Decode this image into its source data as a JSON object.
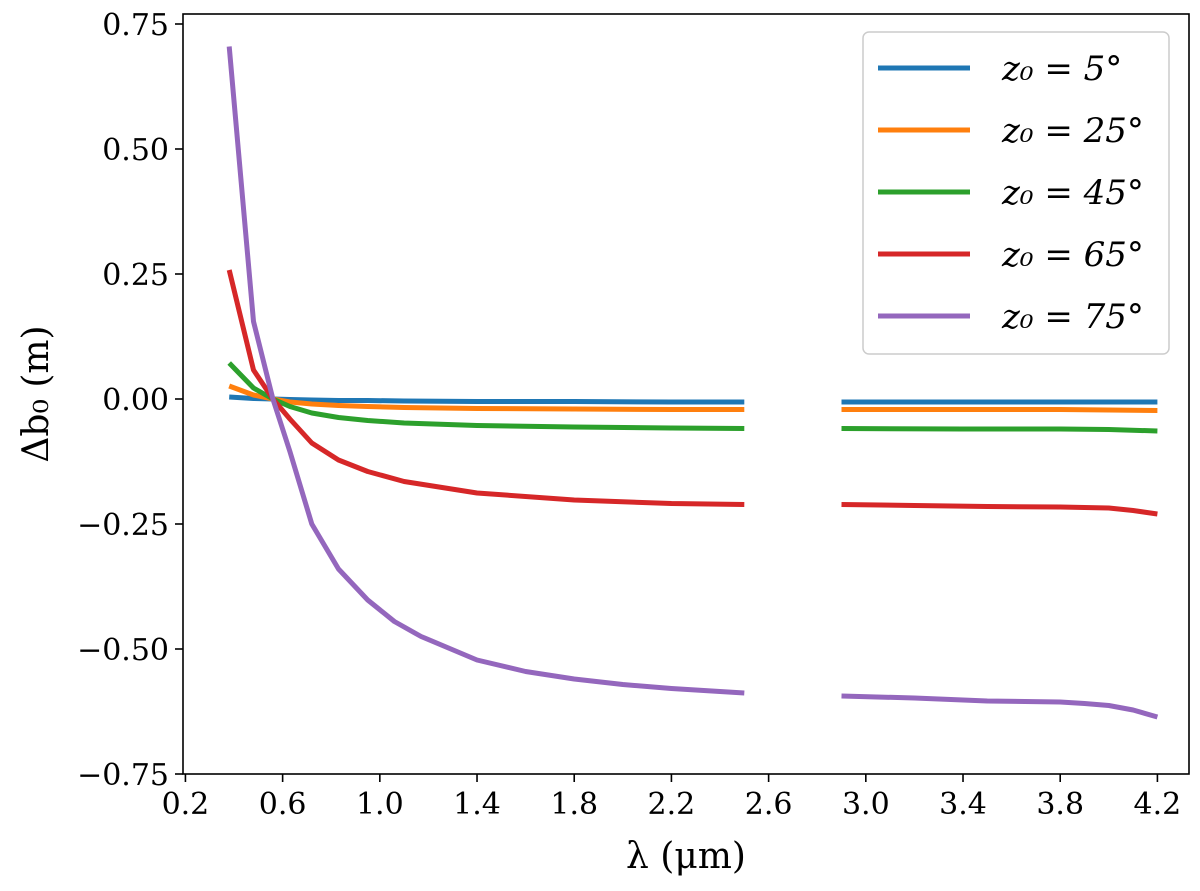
{
  "chart_data": {
    "type": "line",
    "title": "",
    "xlabel": "λ (μm)",
    "ylabel": "Δb₀ (m)",
    "xlim": [
      0.19,
      4.33
    ],
    "ylim": [
      -0.75,
      0.77
    ],
    "grid": false,
    "legend_position": "top-right",
    "xticks": [
      0.2,
      0.6,
      1.0,
      1.4,
      1.8,
      2.2,
      2.6,
      3.0,
      3.4,
      3.8,
      4.2
    ],
    "xtick_labels": [
      "0.2",
      "0.6",
      "1.0",
      "1.4",
      "1.8",
      "2.2",
      "2.6",
      "3.0",
      "3.4",
      "3.8",
      "4.2"
    ],
    "yticks": [
      -0.75,
      -0.5,
      -0.25,
      0.0,
      0.25,
      0.5,
      0.75
    ],
    "ytick_labels": [
      "−0.75",
      "−0.50",
      "−0.25",
      "0.00",
      "0.25",
      "0.50",
      "0.75"
    ],
    "series": [
      {
        "name": "z₀ = 5°",
        "color": "#1f77b4",
        "segments": [
          {
            "x": [
              0.38,
              0.48,
              0.56,
              0.63,
              0.72,
              0.83,
              0.95,
              1.1,
              1.4,
              1.8,
              2.2,
              2.5
            ],
            "y": [
              0.004,
              0.001,
              0.0,
              -0.001,
              -0.002,
              -0.003,
              -0.003,
              -0.004,
              -0.005,
              -0.005,
              -0.006,
              -0.006
            ]
          },
          {
            "x": [
              2.9,
              3.4,
              3.8,
              4.2
            ],
            "y": [
              -0.006,
              -0.006,
              -0.006,
              -0.006
            ]
          }
        ]
      },
      {
        "name": "z₀ = 25°",
        "color": "#ff7f0e",
        "segments": [
          {
            "x": [
              0.38,
              0.48,
              0.56,
              0.63,
              0.72,
              0.83,
              0.95,
              1.1,
              1.4,
              1.8,
              2.2,
              2.5
            ],
            "y": [
              0.026,
              0.008,
              0.0,
              -0.006,
              -0.01,
              -0.013,
              -0.015,
              -0.017,
              -0.019,
              -0.02,
              -0.021,
              -0.021
            ]
          },
          {
            "x": [
              2.9,
              3.4,
              3.8,
              4.0,
              4.2
            ],
            "y": [
              -0.021,
              -0.021,
              -0.021,
              -0.022,
              -0.023
            ]
          }
        ]
      },
      {
        "name": "z₀ = 45°",
        "color": "#2ca02c",
        "segments": [
          {
            "x": [
              0.38,
              0.48,
              0.56,
              0.63,
              0.72,
              0.83,
              0.95,
              1.1,
              1.4,
              1.8,
              2.2,
              2.5
            ],
            "y": [
              0.072,
              0.022,
              0.0,
              -0.015,
              -0.028,
              -0.037,
              -0.043,
              -0.048,
              -0.053,
              -0.056,
              -0.058,
              -0.059
            ]
          },
          {
            "x": [
              2.9,
              3.4,
              3.8,
              4.0,
              4.2
            ],
            "y": [
              -0.059,
              -0.06,
              -0.06,
              -0.061,
              -0.064
            ]
          }
        ]
      },
      {
        "name": "z₀ = 65°",
        "color": "#d62728",
        "segments": [
          {
            "x": [
              0.38,
              0.48,
              0.56,
              0.63,
              0.72,
              0.83,
              0.95,
              1.1,
              1.4,
              1.8,
              2.2,
              2.5
            ],
            "y": [
              0.258,
              0.058,
              0.0,
              -0.04,
              -0.088,
              -0.122,
              -0.145,
              -0.165,
              -0.188,
              -0.202,
              -0.209,
              -0.211
            ]
          },
          {
            "x": [
              2.9,
              3.2,
              3.5,
              3.8,
              4.0,
              4.1,
              4.2
            ],
            "y": [
              -0.211,
              -0.213,
              -0.215,
              -0.216,
              -0.218,
              -0.223,
              -0.23
            ]
          }
        ]
      },
      {
        "name": "z₀ = 75°",
        "color": "#9467bd",
        "segments": [
          {
            "x": [
              0.38,
              0.48,
              0.56,
              0.63,
              0.72,
              0.83,
              0.95,
              1.06,
              1.17,
              1.4,
              1.6,
              1.8,
              2.0,
              2.2,
              2.5
            ],
            "y": [
              0.705,
              0.155,
              0.0,
              -0.105,
              -0.25,
              -0.34,
              -0.402,
              -0.445,
              -0.475,
              -0.522,
              -0.545,
              -0.56,
              -0.571,
              -0.579,
              -0.588
            ]
          },
          {
            "x": [
              2.9,
              3.2,
              3.5,
              3.8,
              3.9,
              4.0,
              4.1,
              4.2
            ],
            "y": [
              -0.594,
              -0.598,
              -0.604,
              -0.606,
              -0.609,
              -0.613,
              -0.622,
              -0.636
            ]
          }
        ]
      }
    ]
  }
}
